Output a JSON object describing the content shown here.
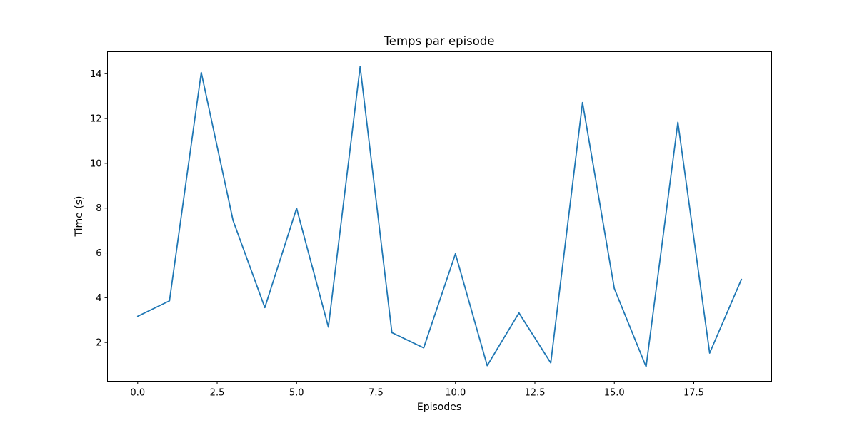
{
  "chart_data": {
    "type": "line",
    "title": "Temps par episode",
    "xlabel": "Episodes",
    "ylabel": "Time (s)",
    "xlim": [
      -0.95,
      19.95
    ],
    "ylim": [
      0.27,
      14.98
    ],
    "xticks": [
      0.0,
      2.5,
      5.0,
      7.5,
      10.0,
      12.5,
      15.0,
      17.5
    ],
    "xtick_labels": [
      "0.0",
      "2.5",
      "5.0",
      "7.5",
      "10.0",
      "12.5",
      "15.0",
      "17.5"
    ],
    "yticks": [
      2,
      4,
      6,
      8,
      10,
      12,
      14
    ],
    "ytick_labels": [
      "2",
      "4",
      "6",
      "8",
      "10",
      "12",
      "14"
    ],
    "grid": false,
    "series": [
      {
        "color": "#1f77b4",
        "x": [
          0,
          1,
          2,
          3,
          4,
          5,
          6,
          7,
          8,
          9,
          10,
          11,
          12,
          13,
          14,
          15,
          16,
          17,
          18,
          19
        ],
        "y": [
          3.17,
          3.86,
          14.05,
          7.45,
          3.56,
          7.99,
          2.69,
          14.31,
          2.44,
          1.76,
          5.96,
          0.97,
          3.32,
          1.09,
          12.71,
          4.41,
          0.92,
          11.83,
          1.53,
          4.82
        ]
      }
    ]
  }
}
